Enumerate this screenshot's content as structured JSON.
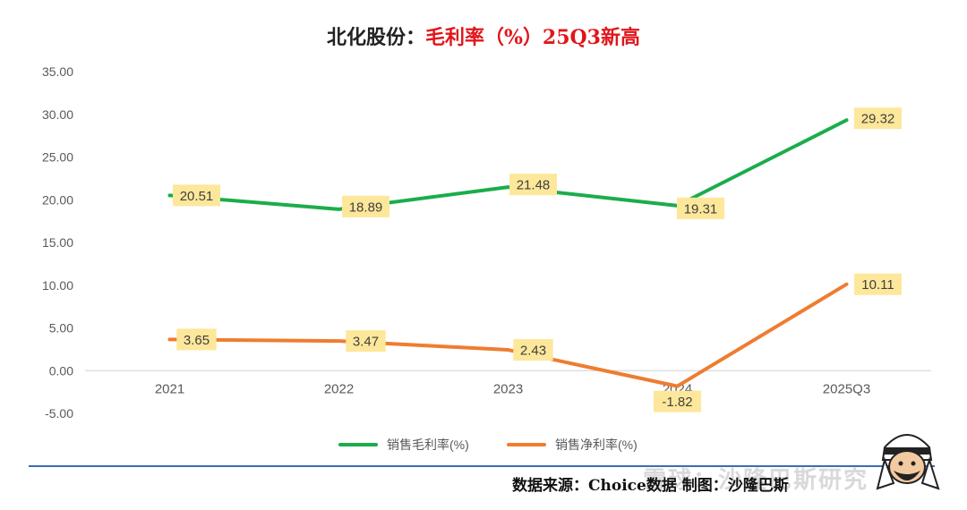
{
  "title": {
    "prefix": "北化股份：",
    "highlight": "毛利率（%）25Q3新高",
    "highlight_color": "#e0161b"
  },
  "source_note": "数据来源：Choice数据  制图：沙隆巴斯",
  "watermark": "雪球：沙隆巴斯研究",
  "chart_data": {
    "type": "line",
    "categories": [
      "2021",
      "2022",
      "2023",
      "2024",
      "2025Q3"
    ],
    "series": [
      {
        "name": "销售毛利率(%)",
        "color": "#1aad4b",
        "values": [
          20.51,
          18.89,
          21.48,
          19.31,
          29.32
        ],
        "labels": [
          "20.51",
          "18.89",
          "21.48",
          "19.31",
          "29.32"
        ]
      },
      {
        "name": "销售净利率(%)",
        "color": "#ee7d31",
        "values": [
          3.65,
          3.47,
          2.43,
          -1.82,
          10.11
        ],
        "labels": [
          "3.65",
          "3.47",
          "2.43",
          "-1.82",
          "10.11"
        ]
      }
    ],
    "ylim": [
      -5,
      35
    ],
    "yticks": [
      "-5.00",
      "0.00",
      "5.00",
      "10.00",
      "15.00",
      "20.00",
      "25.00",
      "30.00",
      "35.00"
    ],
    "grid": false,
    "legend_position": "bottom",
    "label_background": "#fde79a"
  }
}
